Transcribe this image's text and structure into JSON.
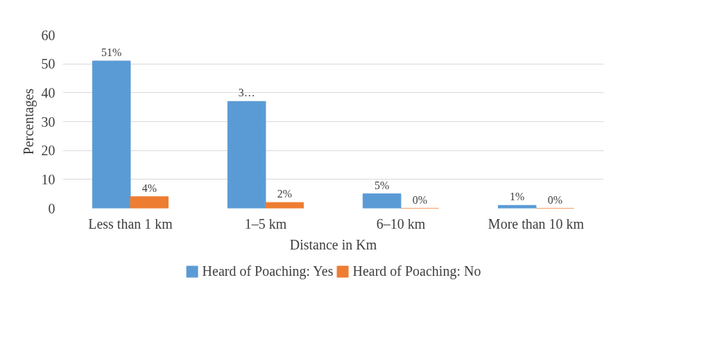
{
  "chart_data": {
    "type": "bar",
    "xlabel": "Distance in Km",
    "ylabel": "Percentages",
    "categories": [
      "Less than 1 km",
      "1–5 km",
      "6–10 km",
      "More than 10 km"
    ],
    "series": [
      {
        "name": "Heard of Poaching: Yes",
        "color": "#5b9bd5",
        "values": [
          51,
          37,
          5,
          1
        ],
        "value_labels": [
          "51%",
          "3…",
          "5%",
          "1%"
        ]
      },
      {
        "name": "Heard of Poaching: No",
        "color": "#ed7d31",
        "values": [
          4,
          2,
          0,
          0
        ],
        "value_labels": [
          "4%",
          "2%",
          "0%",
          "0%"
        ]
      }
    ],
    "ylim": [
      0,
      60
    ],
    "yticks": [
      0,
      10,
      20,
      30,
      40,
      50,
      60
    ],
    "grid": "y",
    "legend": "bottom"
  }
}
